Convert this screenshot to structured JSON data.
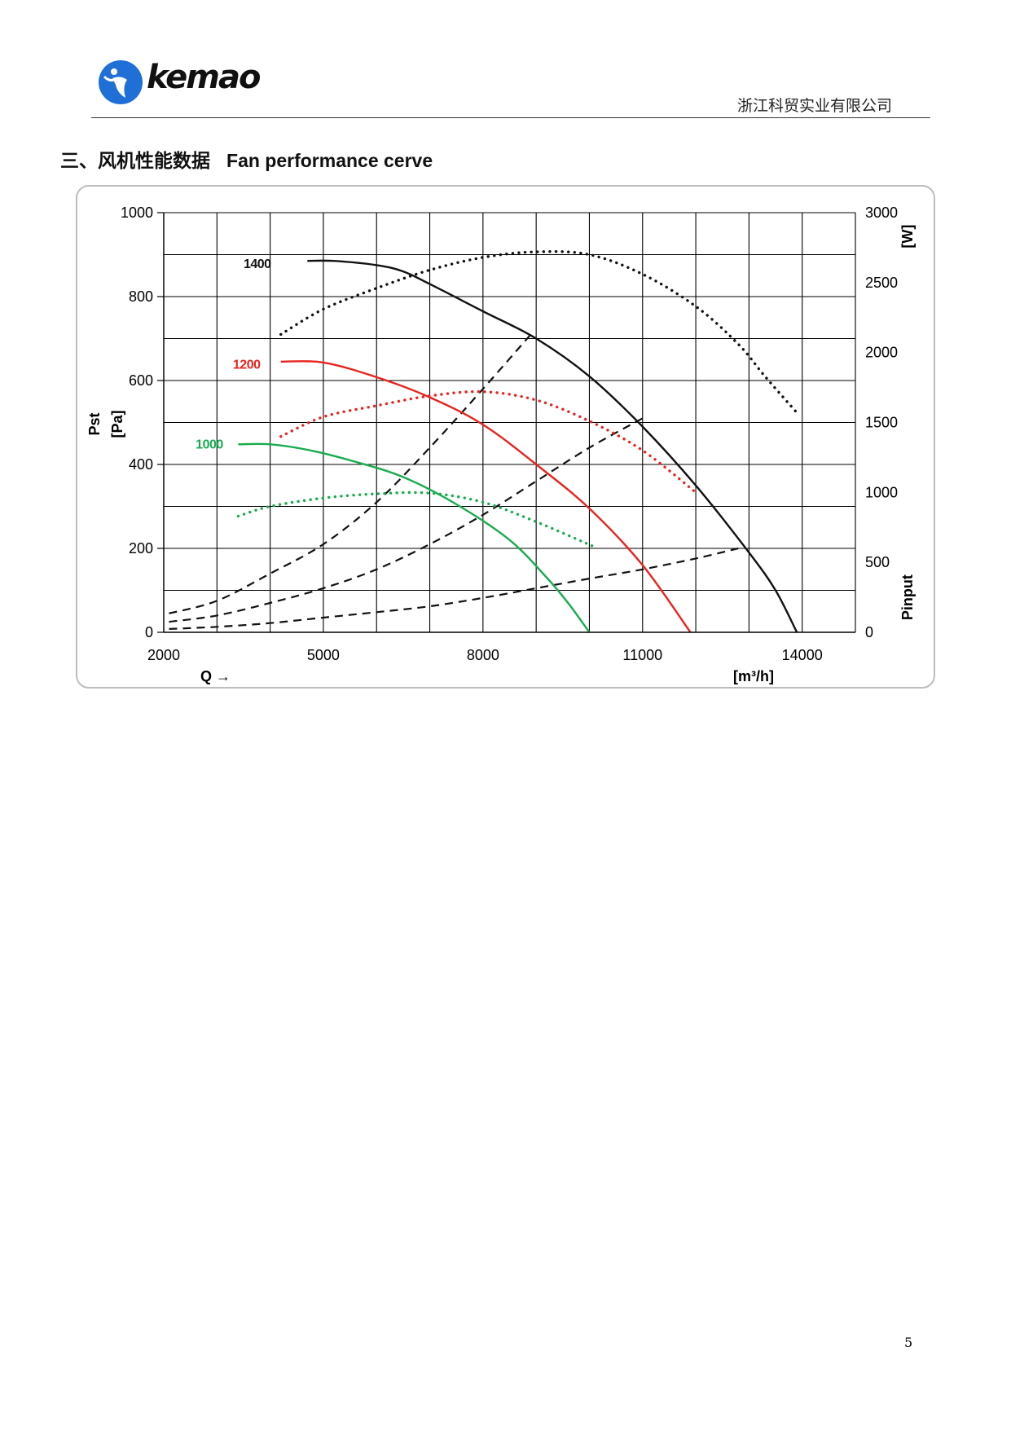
{
  "header": {
    "logo_text": "kemao",
    "company": "浙江科贸实业有限公司"
  },
  "section": {
    "title_cn": "三、风机性能数据",
    "title_en": "Fan performance cerve"
  },
  "page_number": "5",
  "colors": {
    "curve_1400": "#111111",
    "curve_1200": "#e8231f",
    "curve_1000": "#1aab4f",
    "logo_blue": "#1f6fd6",
    "system_curves": "#111111"
  },
  "chart_data": {
    "type": "line",
    "xlabel": "Q →",
    "xunit": "[m³/h]",
    "ylabel_left_line1": "Pst",
    "ylabel_left_line2": "[Pa]",
    "ylabel_right_line1": "Pinput",
    "ylabel_right_line2": "[W]",
    "xlim": [
      2000,
      15000
    ],
    "ylim_left": [
      0,
      1000
    ],
    "ylim_right": [
      0,
      3000
    ],
    "x_ticks": [
      2000,
      5000,
      8000,
      11000,
      14000
    ],
    "x_tick_labels": [
      "2000",
      "5000",
      "8000",
      "11000",
      "14000"
    ],
    "x_grid_step": 1000,
    "y_left_ticks": [
      0,
      200,
      400,
      600,
      800,
      1000
    ],
    "y_left_tick_labels": [
      "0",
      "200",
      "400",
      "600",
      "800",
      "1000"
    ],
    "y_right_ticks": [
      0,
      500,
      1000,
      1500,
      2000,
      2500,
      3000
    ],
    "y_right_tick_labels": [
      "0",
      "500",
      "1000",
      "1500",
      "2000",
      "2500",
      "3000"
    ],
    "y_grid_step": 100,
    "grid": true,
    "pressure_curves": [
      {
        "label": "1400",
        "color_key": "curve_1400",
        "label_x": 3500,
        "label_y": 880,
        "points": [
          [
            4700,
            885
          ],
          [
            5200,
            885
          ],
          [
            6000,
            875
          ],
          [
            6500,
            860
          ],
          [
            7000,
            830
          ],
          [
            8000,
            765
          ],
          [
            9000,
            700
          ],
          [
            10000,
            610
          ],
          [
            11000,
            490
          ],
          [
            12000,
            350
          ],
          [
            13000,
            190
          ],
          [
            13500,
            100
          ],
          [
            13900,
            0
          ]
        ]
      },
      {
        "label": "1200",
        "color_key": "curve_1200",
        "label_x": 3300,
        "label_y": 640,
        "points": [
          [
            4200,
            645
          ],
          [
            5000,
            643
          ],
          [
            6000,
            608
          ],
          [
            7000,
            560
          ],
          [
            8000,
            495
          ],
          [
            9000,
            400
          ],
          [
            10000,
            295
          ],
          [
            11000,
            160
          ],
          [
            11900,
            0
          ]
        ]
      },
      {
        "label": "1000",
        "color_key": "curve_1000",
        "label_x": 2600,
        "label_y": 450,
        "points": [
          [
            3400,
            448
          ],
          [
            4000,
            448
          ],
          [
            4700,
            435
          ],
          [
            5500,
            410
          ],
          [
            6500,
            370
          ],
          [
            7500,
            305
          ],
          [
            8500,
            220
          ],
          [
            9200,
            130
          ],
          [
            9600,
            70
          ],
          [
            10000,
            0
          ]
        ]
      }
    ],
    "power_curves": [
      {
        "label": "1400",
        "color_key": "curve_1400",
        "points": [
          [
            4200,
            2130
          ],
          [
            5000,
            2310
          ],
          [
            6000,
            2460
          ],
          [
            7000,
            2590
          ],
          [
            8000,
            2680
          ],
          [
            9000,
            2720
          ],
          [
            10000,
            2700
          ],
          [
            11000,
            2560
          ],
          [
            12000,
            2330
          ],
          [
            12800,
            2060
          ],
          [
            13300,
            1830
          ],
          [
            13900,
            1570
          ]
        ]
      },
      {
        "label": "1200",
        "color_key": "curve_1200",
        "points": [
          [
            4200,
            1400
          ],
          [
            5000,
            1540
          ],
          [
            6000,
            1620
          ],
          [
            7000,
            1690
          ],
          [
            8000,
            1720
          ],
          [
            9000,
            1660
          ],
          [
            10000,
            1510
          ],
          [
            11000,
            1300
          ],
          [
            12000,
            1000
          ]
        ]
      },
      {
        "label": "1000",
        "color_key": "curve_1000",
        "points": [
          [
            3400,
            830
          ],
          [
            4000,
            900
          ],
          [
            5000,
            960
          ],
          [
            6000,
            990
          ],
          [
            7000,
            995
          ],
          [
            8000,
            930
          ],
          [
            9000,
            790
          ],
          [
            10100,
            610
          ]
        ]
      }
    ],
    "system_curves": [
      {
        "points": [
          [
            2100,
            45
          ],
          [
            3000,
            75
          ],
          [
            4000,
            140
          ],
          [
            5000,
            210
          ],
          [
            6000,
            310
          ],
          [
            7000,
            440
          ],
          [
            8000,
            580
          ],
          [
            8900,
            710
          ]
        ]
      },
      {
        "points": [
          [
            2100,
            25
          ],
          [
            3000,
            40
          ],
          [
            4000,
            70
          ],
          [
            5000,
            105
          ],
          [
            6000,
            150
          ],
          [
            7000,
            210
          ],
          [
            8000,
            280
          ],
          [
            9000,
            360
          ],
          [
            10000,
            440
          ],
          [
            11000,
            510
          ]
        ]
      },
      {
        "points": [
          [
            2100,
            8
          ],
          [
            3000,
            13
          ],
          [
            4000,
            22
          ],
          [
            5000,
            35
          ],
          [
            6000,
            48
          ],
          [
            7000,
            62
          ],
          [
            8000,
            82
          ],
          [
            9000,
            105
          ],
          [
            10000,
            128
          ],
          [
            11000,
            150
          ],
          [
            12000,
            176
          ],
          [
            12800,
            200
          ]
        ]
      }
    ]
  }
}
